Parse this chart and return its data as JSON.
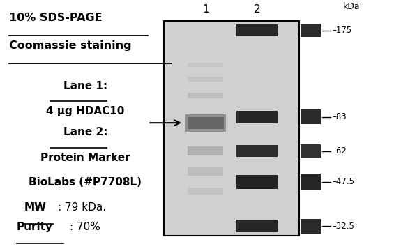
{
  "title_line1": "10% SDS-PAGE",
  "title_line2": "Coomassie staining",
  "lane1_label": "Lane 1",
  "lane1_desc": "4 μg HDAC10",
  "lane2_label": "Lane 2",
  "lane2_desc1": "Protein Marker",
  "lane2_desc2": "BioLabs (#P7708L)",
  "mw_label": "MW",
  "mw_value": ": 79 kDa.",
  "purity_label": "Purity",
  "purity_value": ": 70%",
  "kda_label": "kDa",
  "marker_kdas": [
    175,
    83,
    62,
    47.5,
    32.5
  ],
  "background_color": "#ffffff",
  "gel_bg": "#d0d0d0",
  "gel_border": "#000000"
}
